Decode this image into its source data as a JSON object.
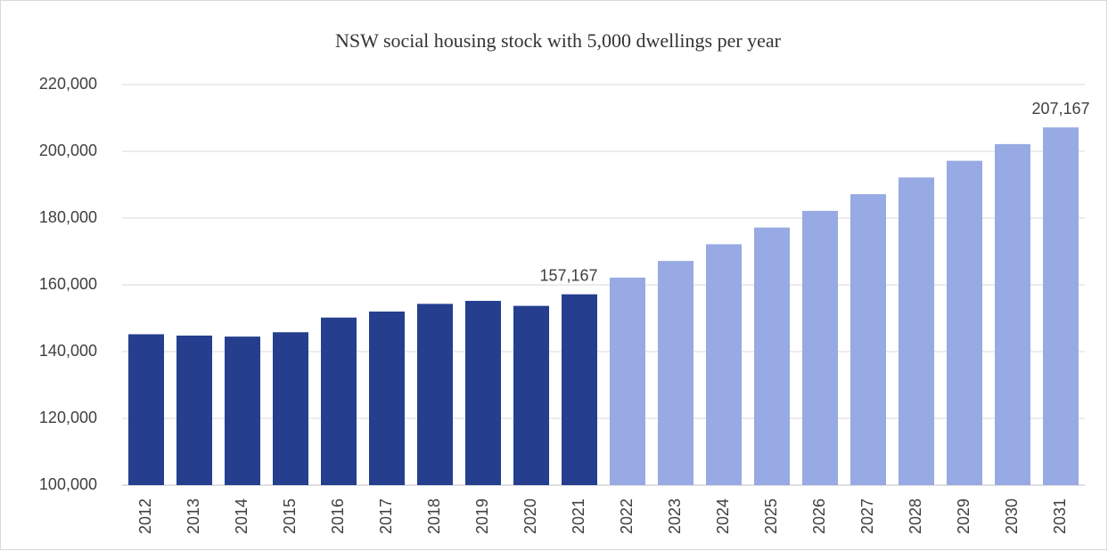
{
  "chart_data": {
    "type": "bar",
    "title": "NSW social housing stock with 5,000 dwellings per year",
    "categories": [
      "2012",
      "2013",
      "2014",
      "2015",
      "2016",
      "2017",
      "2018",
      "2019",
      "2020",
      "2021",
      "2022",
      "2023",
      "2024",
      "2025",
      "2026",
      "2027",
      "2028",
      "2029",
      "2030",
      "2031"
    ],
    "values": [
      145200,
      144800,
      144500,
      145800,
      150200,
      152000,
      154300,
      155200,
      153700,
      157167,
      162167,
      167167,
      172167,
      177167,
      182167,
      187167,
      192167,
      197167,
      202167,
      207167
    ],
    "value_labels": [
      null,
      null,
      null,
      null,
      null,
      null,
      null,
      null,
      null,
      "157,167",
      null,
      null,
      null,
      null,
      null,
      null,
      null,
      null,
      null,
      "207,167"
    ],
    "colors": [
      "#253f8e",
      "#253f8e",
      "#253f8e",
      "#253f8e",
      "#253f8e",
      "#253f8e",
      "#253f8e",
      "#253f8e",
      "#253f8e",
      "#253f8e",
      "#97aae3",
      "#97aae3",
      "#97aae3",
      "#97aae3",
      "#97aae3",
      "#97aae3",
      "#97aae3",
      "#97aae3",
      "#97aae3",
      "#97aae3"
    ],
    "ylim": [
      100000,
      220000
    ],
    "yticks": [
      {
        "value": 100000,
        "label": "100,000"
      },
      {
        "value": 120000,
        "label": "120,000"
      },
      {
        "value": 140000,
        "label": "140,000"
      },
      {
        "value": 160000,
        "label": "160,000"
      },
      {
        "value": 180000,
        "label": "180,000"
      },
      {
        "value": 200000,
        "label": "200,000"
      },
      {
        "value": 220000,
        "label": "220,000"
      }
    ],
    "grid": true
  }
}
